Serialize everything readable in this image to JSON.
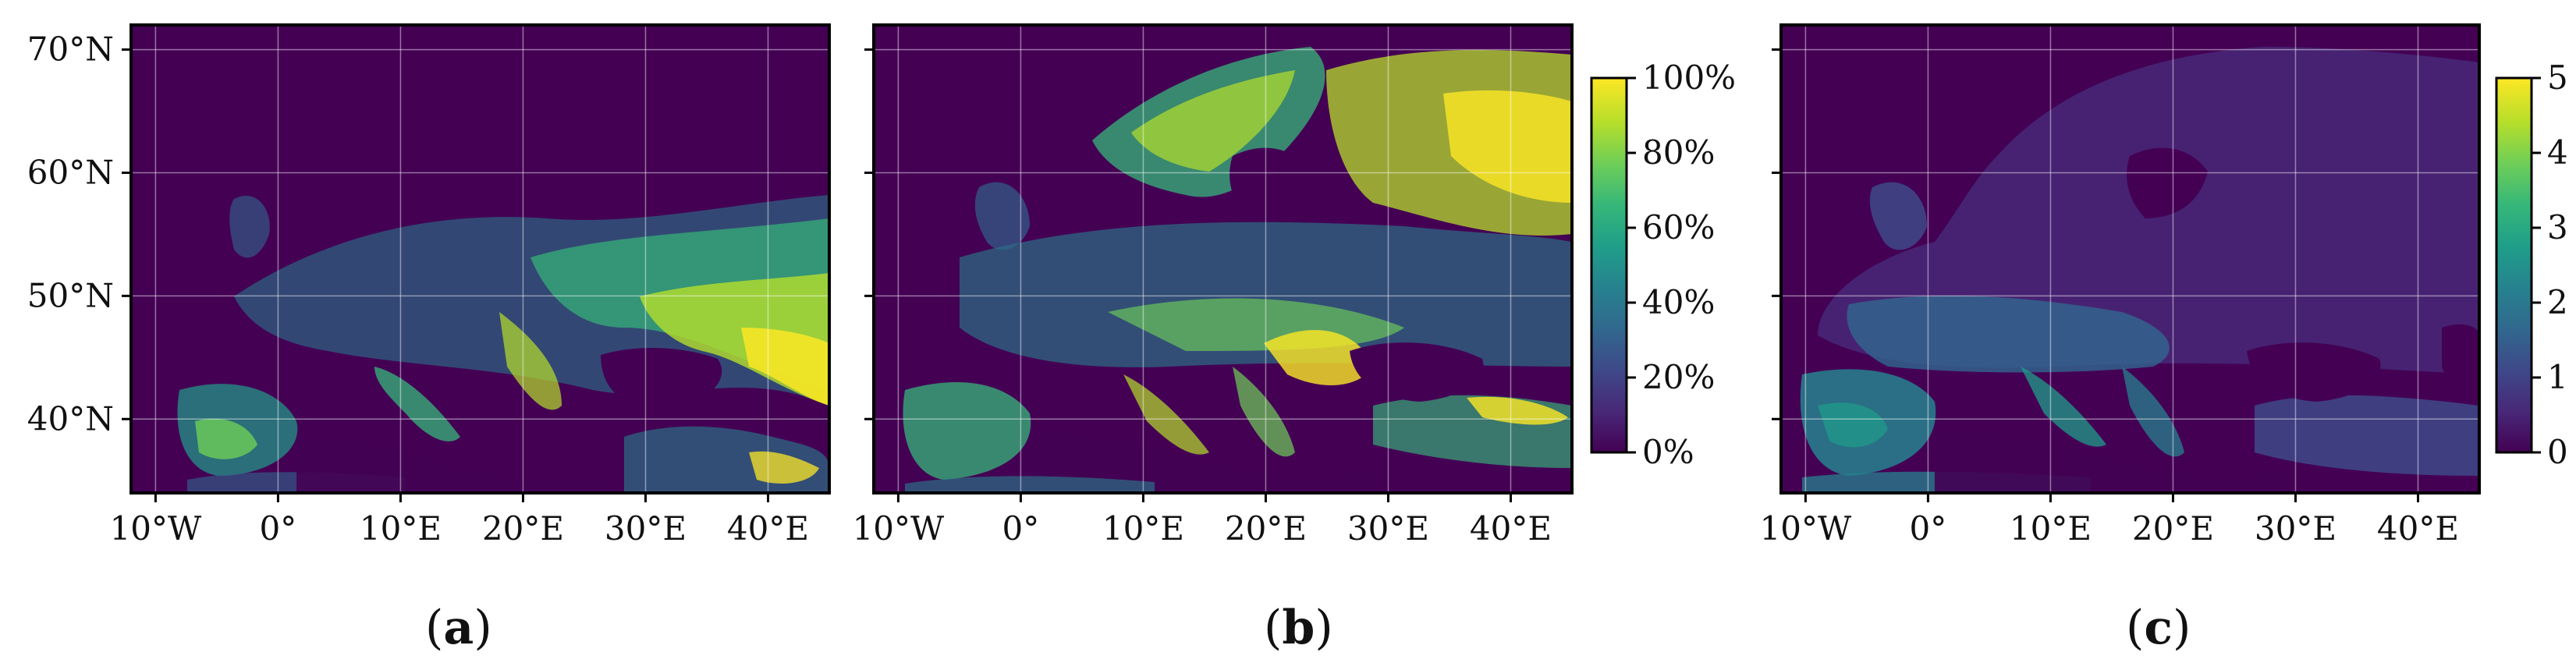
{
  "figure": {
    "panels": [
      {
        "id": "a",
        "caption": "a",
        "xticks": [
          "10°W",
          "0°",
          "10°E",
          "20°E",
          "30°E",
          "40°E"
        ],
        "yticks": [
          "70°N",
          "60°N",
          "50°N",
          "40°N"
        ],
        "colorbar": null
      },
      {
        "id": "b",
        "caption": "b",
        "xticks": [
          "10°W",
          "0°",
          "10°E",
          "20°E",
          "30°E",
          "40°E"
        ],
        "yticks": [],
        "colorbar": "percent"
      },
      {
        "id": "c",
        "caption": "c",
        "xticks": [
          "10°W",
          "0°",
          "10°E",
          "20°E",
          "30°E",
          "40°E"
        ],
        "yticks": [],
        "colorbar": "value"
      }
    ],
    "colorbar_percent": {
      "ticks": [
        "100%",
        "80%",
        "60%",
        "40%",
        "20%",
        "0%"
      ]
    },
    "colorbar_value": {
      "ticks": [
        "5",
        "4",
        "3",
        "2",
        "1",
        "0"
      ]
    }
  },
  "chart_data": [
    {
      "type": "heatmap",
      "panel": "a",
      "colormap": "viridis",
      "x": [
        -10,
        0,
        10,
        20,
        30,
        40
      ],
      "y": [
        70,
        60,
        50,
        40
      ],
      "xlim": [
        -12,
        45
      ],
      "ylim": [
        34,
        72
      ],
      "grid": true
    },
    {
      "type": "heatmap",
      "panel": "b",
      "colormap": "viridis",
      "x": [
        -10,
        0,
        10,
        20,
        30,
        40
      ],
      "y": [
        70,
        60,
        50,
        40
      ],
      "xlim": [
        -12,
        45
      ],
      "ylim": [
        34,
        72
      ],
      "grid": true,
      "colorbar_range": [
        0,
        100
      ],
      "colorbar_unit": "%"
    },
    {
      "type": "heatmap",
      "panel": "c",
      "colormap": "viridis",
      "x": [
        -10,
        0,
        10,
        20,
        30,
        40
      ],
      "y": [
        70,
        60,
        50,
        40
      ],
      "xlim": [
        -12,
        45
      ],
      "ylim": [
        34,
        72
      ],
      "grid": true,
      "colorbar_range": [
        0,
        5
      ]
    }
  ],
  "colors": {
    "background_land_sea": "#440154",
    "viridis": [
      "#440154",
      "#482878",
      "#3e4989",
      "#31688e",
      "#26828e",
      "#1f9e89",
      "#35b779",
      "#6ece58",
      "#b5de2b",
      "#fde725"
    ]
  }
}
